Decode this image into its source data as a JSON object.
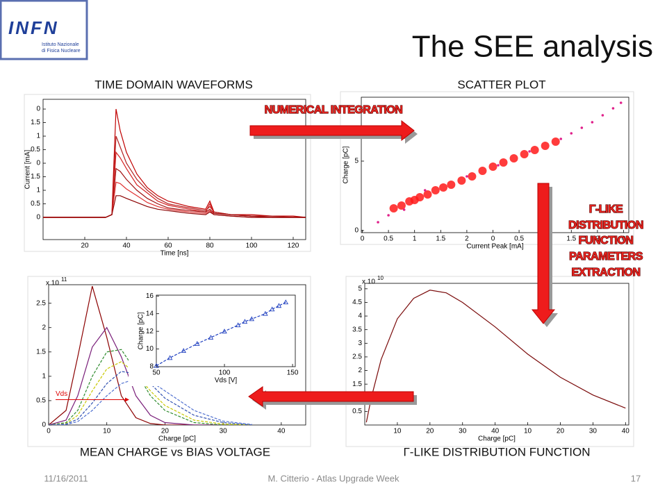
{
  "header": {
    "title": "The SEE analysis",
    "logo": "INFN",
    "logo_subtitle": [
      "Istituto Nazionale",
      "di Fisica Nucleare"
    ]
  },
  "panel_labels": [
    "TIME DOMAIN WAVEFORMS",
    "SCATTER PLOT",
    "MEAN CHARGE vs BIAS VOLTAGE",
    "Γ-LIKE DISTRIBUTION FUNCTION"
  ],
  "arrow_labels": {
    "integration": "NUMERICAL INTEGRATION",
    "extraction": [
      "Γ-LIKE",
      "DISTRIBUTION",
      "FUNCTION",
      "PARAMETERS",
      "EXTRACTION"
    ]
  },
  "footer": {
    "date": "11/16/2011",
    "author": "M. Citterio - Atlas Upgrade Week",
    "page": 17
  },
  "chart_data": [
    {
      "type": "line",
      "xlabel": "Time [ns]",
      "ylabel": "Current [mA]",
      "xlim": [
        0,
        126
      ],
      "ylim": [
        -0.82,
        4.36
      ],
      "xticks": [
        20,
        40,
        60,
        80,
        100,
        120
      ],
      "yticks": [
        {
          "value": 4,
          "label": "0"
        },
        {
          "value": 3.5,
          "label": "1.5"
        },
        {
          "value": 3,
          "label": "1"
        },
        {
          "value": 2.5,
          "label": "0.5"
        },
        {
          "value": 2,
          "label": "0"
        },
        {
          "value": 1.5,
          "label": "1.5"
        },
        1,
        0.5,
        0
      ],
      "x": [
        0,
        10,
        20,
        30,
        33,
        35,
        37,
        40,
        45,
        50,
        55,
        60,
        70,
        78,
        80,
        82,
        90,
        100,
        110,
        120,
        126
      ],
      "series": [
        {
          "color": "#c00000",
          "values": [
            0,
            0,
            0,
            0,
            0.1,
            4.0,
            3.2,
            2.4,
            1.6,
            1.1,
            0.8,
            0.6,
            0.4,
            0.3,
            0.6,
            0.2,
            0.1,
            0.1,
            0.05,
            0.05,
            0
          ]
        },
        {
          "color": "#b22222",
          "values": [
            0,
            0,
            0,
            0,
            0.1,
            3.0,
            2.6,
            2.0,
            1.4,
            1.0,
            0.7,
            0.5,
            0.35,
            0.25,
            0.4,
            0.2,
            0.1,
            0.05,
            0.05,
            0,
            0
          ]
        },
        {
          "color": "#d42020",
          "values": [
            0,
            0,
            0,
            0,
            0.1,
            2.4,
            2.2,
            1.8,
            1.2,
            0.9,
            0.6,
            0.45,
            0.3,
            0.2,
            0.5,
            0.15,
            0.1,
            0.05,
            0,
            0,
            0
          ]
        },
        {
          "color": "#a01010",
          "values": [
            0,
            0,
            0,
            0,
            0.1,
            1.8,
            1.7,
            1.4,
            1.0,
            0.7,
            0.5,
            0.35,
            0.25,
            0.2,
            0.3,
            0.15,
            0.1,
            0.05,
            0,
            0,
            0
          ]
        },
        {
          "color": "#e03030",
          "values": [
            0,
            0,
            0,
            0,
            0.1,
            1.3,
            1.25,
            1.05,
            0.8,
            0.55,
            0.4,
            0.3,
            0.2,
            0.15,
            0.25,
            0.1,
            0.05,
            0,
            0,
            0,
            0
          ]
        },
        {
          "color": "#8b0000",
          "values": [
            0,
            0,
            0,
            0,
            0.1,
            0.8,
            0.8,
            0.7,
            0.55,
            0.4,
            0.3,
            0.25,
            0.15,
            0.1,
            0.2,
            0.1,
            0.05,
            0,
            0,
            0,
            0
          ]
        }
      ]
    },
    {
      "type": "scatter",
      "xlabel": "Current Peak [mA]",
      "ylabel": "Charge [pC]",
      "xlim": [
        -0.02,
        5.1
      ],
      "ylim": [
        -0.15,
        9.6
      ],
      "xticks": [
        0,
        0.5,
        1,
        1.5,
        2,
        {
          "value": 2.5,
          "label": "0"
        },
        {
          "value": 3,
          "label": "0.5"
        },
        {
          "value": 3.5,
          "label": "1"
        },
        {
          "value": 4,
          "label": "1.5"
        },
        {
          "value": 4.5,
          "label": "2"
        },
        {
          "value": 5,
          "label": "0"
        }
      ],
      "yticks": [
        0,
        5
      ],
      "series": [
        {
          "color": "#ff1a1a",
          "x": [
            0.6,
            0.75,
            0.9,
            1.0,
            1.1,
            1.25,
            1.4,
            1.55,
            1.7,
            1.9,
            2.1,
            2.3,
            2.5,
            2.7,
            2.9,
            3.1,
            3.3,
            3.5,
            3.7
          ],
          "values": [
            1.6,
            1.8,
            2.1,
            2.2,
            2.4,
            2.6,
            2.9,
            3.1,
            3.3,
            3.6,
            3.9,
            4.3,
            4.6,
            4.9,
            5.2,
            5.5,
            5.8,
            6.1,
            6.4
          ]
        },
        {
          "color": "#e0208a",
          "x": [
            0.3,
            0.5,
            0.8,
            1.2,
            2.0,
            2.6,
            3.2,
            3.8,
            4.0,
            4.2,
            4.4,
            4.6,
            4.8,
            4.95
          ],
          "values": [
            0.6,
            1.1,
            1.5,
            2.9,
            3.9,
            4.7,
            5.7,
            6.6,
            7.0,
            7.4,
            7.8,
            8.3,
            8.8,
            9.2
          ]
        }
      ]
    },
    {
      "type": "line",
      "xlabel": "Charge [pC]",
      "y_multiplier": "x 10",
      "y_exponent": "11",
      "annotation": "Vds",
      "xlim": [
        0,
        44.2
      ],
      "ylim": [
        0,
        2.88
      ],
      "xticks": [
        0,
        10,
        20,
        30,
        40
      ],
      "yticks": [
        0,
        0.5,
        1,
        1.5,
        2,
        2.5
      ],
      "x": [
        0,
        3,
        5,
        7.5,
        10,
        12.5,
        15,
        17.5,
        20,
        25,
        30,
        35
      ],
      "series": [
        {
          "color": "#8b0000",
          "dashed": false,
          "values": [
            0,
            0.3,
            1.4,
            2.85,
            1.8,
            0.6,
            0.15,
            0.03,
            0,
            0,
            0,
            0
          ]
        },
        {
          "color": "#7a1f7a",
          "dashed": false,
          "values": [
            0,
            0.1,
            0.6,
            1.6,
            2.0,
            1.4,
            0.6,
            0.2,
            0.05,
            0,
            0,
            0
          ]
        },
        {
          "color": "#2e8b2e",
          "dashed": true,
          "values": [
            0,
            0.05,
            0.3,
            1.0,
            1.5,
            1.55,
            1.1,
            0.6,
            0.3,
            0.05,
            0,
            0
          ]
        },
        {
          "color": "#c8c800",
          "dashed": true,
          "values": [
            0,
            0.03,
            0.2,
            0.7,
            1.15,
            1.3,
            1.05,
            0.7,
            0.4,
            0.1,
            0.02,
            0
          ]
        },
        {
          "color": "#3050b0",
          "dashed": true,
          "values": [
            0,
            0.02,
            0.12,
            0.45,
            0.85,
            1.1,
            1.05,
            0.85,
            0.55,
            0.2,
            0.05,
            0
          ]
        },
        {
          "color": "#5070d0",
          "dashed": true,
          "values": [
            0,
            0.01,
            0.07,
            0.3,
            0.6,
            0.85,
            0.95,
            0.9,
            0.7,
            0.3,
            0.08,
            0.01
          ]
        }
      ]
    },
    {
      "type": "marker-line",
      "xlabel": "Vds [V]",
      "ylabel": "Charge [pC]",
      "xlim": [
        50,
        152
      ],
      "ylim": [
        8,
        16.1
      ],
      "xticks": [
        50,
        100,
        150
      ],
      "yticks": [
        8,
        10,
        12,
        14,
        16
      ],
      "x": [
        50,
        60,
        70,
        80,
        90,
        100,
        110,
        115,
        120,
        130,
        135,
        140,
        145
      ],
      "series": [
        {
          "color": "#2040c0",
          "dashed": true,
          "values": [
            8.1,
            9.0,
            9.8,
            10.6,
            11.3,
            12.0,
            12.7,
            13.1,
            13.4,
            14.0,
            14.5,
            14.9,
            15.3
          ]
        }
      ]
    },
    {
      "type": "line",
      "xlabel": "Charge [pC]",
      "y_multiplier": "x 10",
      "y_exponent": "10",
      "xlim": [
        0,
        81
      ],
      "ylim": [
        0,
        5.2
      ],
      "xticks": [
        10,
        20,
        30,
        40,
        {
          "value": 50,
          "label": "10"
        },
        {
          "value": 60,
          "label": "20"
        },
        {
          "value": 70,
          "label": "30"
        },
        {
          "value": 80,
          "label": "40"
        }
      ],
      "yticks": [
        5,
        4.5,
        4,
        3.5,
        3,
        2.5,
        2,
        1.5,
        0.5
      ],
      "x": [
        0.5,
        2,
        5,
        10,
        15,
        20,
        25,
        30,
        40,
        50,
        60,
        70,
        80
      ],
      "series": [
        {
          "color": "#7a0a0a",
          "dashed": false,
          "values": [
            0.1,
            1.0,
            2.4,
            3.9,
            4.65,
            4.95,
            4.85,
            4.5,
            3.6,
            2.6,
            1.75,
            1.1,
            0.62
          ]
        }
      ]
    }
  ]
}
